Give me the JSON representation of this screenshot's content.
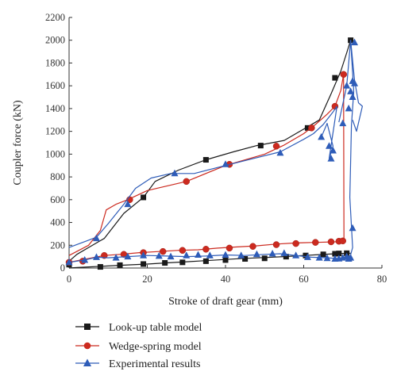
{
  "chart_data": {
    "type": "line",
    "title": "",
    "xlabel": "Stroke of draft gear (mm)",
    "ylabel": "Coupler force (kN)",
    "xlim": [
      0,
      80
    ],
    "ylim": [
      0,
      2200
    ],
    "xticks": [
      0,
      20,
      40,
      60,
      80
    ],
    "yticks": [
      0,
      200,
      400,
      600,
      800,
      1000,
      1200,
      1400,
      1600,
      1800,
      2000,
      2200
    ],
    "grid": false,
    "legend_position": "bottom",
    "series": [
      {
        "name": "Look-up table model",
        "color": "#1a1a1a",
        "marker": "square",
        "curves": [
          {
            "x": [
              0,
              2,
              5,
              9,
              14,
              19,
              22,
              28,
              35,
              42,
              48,
              55,
              60,
              64,
              67,
              69.5,
              71,
              72
            ],
            "y": [
              60,
              120,
              180,
              260,
              480,
              620,
              760,
              860,
              950,
              1020,
              1075,
              1120,
              1220,
              1300,
              1530,
              1730,
              1890,
              2000
            ]
          },
          {
            "x": [
              72,
              70,
              68,
              64,
              60,
              55,
              50,
              45,
              40,
              35,
              30,
              25,
              20,
              15,
              10,
              5,
              2,
              0
            ],
            "y": [
              130,
              128,
              125,
              118,
              110,
              100,
              92,
              85,
              75,
              65,
              55,
              45,
              35,
              27,
              18,
              10,
              5,
              0
            ]
          }
        ],
        "markers": {
          "x": [
            0,
            8,
            13,
            19,
            24.5,
            29,
            35,
            40,
            45,
            50,
            55.5,
            60.5,
            65,
            68,
            69,
            71,
            72,
            68,
            61,
            35,
            49,
            19
          ],
          "y": [
            30,
            10,
            25,
            35,
            45,
            50,
            60,
            70,
            80,
            85,
            100,
            110,
            120,
            125,
            128,
            130,
            2000,
            1670,
            1230,
            950,
            1075,
            620
          ]
        }
      },
      {
        "name": "Wedge-spring model",
        "color": "#cc2a1f",
        "marker": "circle",
        "curves": [
          {
            "x": [
              0,
              5,
              8,
              9.5,
              12,
              15,
              20,
              30,
              40,
              50,
              55,
              60,
              63,
              66,
              68,
              69.5,
              70.2
            ],
            "y": [
              110,
              200,
              330,
              510,
              560,
              600,
              680,
              760,
              900,
              1000,
              1080,
              1180,
              1260,
              1350,
              1420,
              1560,
              1700
            ]
          },
          {
            "x": [
              70.2,
              70.3,
              70,
              67,
              63,
              58,
              53,
              48,
              43,
              38,
              33,
              28,
              23,
              18,
              13,
              9,
              3,
              0
            ],
            "y": [
              1700,
              235,
              232,
              229,
              225,
              220,
              210,
              195,
              185,
              175,
              160,
              155,
              145,
              135,
              120,
              110,
              70,
              50
            ]
          }
        ],
        "markers": {
          "x": [
            0,
            3.5,
            9,
            14,
            19,
            24,
            29,
            35,
            41,
            47,
            53,
            58,
            63,
            67,
            69,
            70,
            15.5,
            30,
            41,
            53,
            62,
            68,
            70.2
          ],
          "y": [
            50,
            60,
            110,
            120,
            135,
            145,
            155,
            165,
            175,
            190,
            205,
            215,
            225,
            230,
            235,
            238,
            600,
            760,
            910,
            1070,
            1230,
            1420,
            1700
          ]
        }
      },
      {
        "name": "Experimental results",
        "color": "#2e5cb8",
        "marker": "triangle",
        "curves": [
          {
            "x": [
              0,
              7,
              10,
              14,
              17,
              21,
              26,
              32,
              40,
              47,
              54,
              60,
              62.5,
              65,
              67.5,
              68.5
            ],
            "y": [
              180,
              270,
              390,
              560,
              700,
              790,
              830,
              830,
              900,
              960,
              1020,
              1130,
              1180,
              1260,
              1370,
              1420
            ]
          },
          {
            "x": [
              64.5,
              66,
              67.5,
              66.5,
              68.5
            ],
            "y": [
              1150,
              1270,
              1070,
              960,
              1420
            ]
          },
          {
            "x": [
              69,
              71,
              72,
              73,
              74,
              75,
              73.5,
              72.5
            ],
            "y": [
              1280,
              1600,
              2000,
              1650,
              1450,
              1420,
              1200,
              1300
            ]
          },
          {
            "x": [
              72,
              72.8,
              72.2,
              71.8,
              72.5,
              71.8
            ],
            "y": [
              2000,
              1550,
              1250,
              620,
              180,
              90
            ]
          },
          {
            "x": [
              72,
              71,
              69,
              66,
              62,
              58,
              54,
              50,
              45,
              40,
              35,
              30,
              25,
              20,
              15,
              10,
              7,
              4,
              0
            ],
            "y": [
              90,
              85,
              82,
              90,
              95,
              110,
              125,
              120,
              110,
              115,
              105,
              100,
              105,
              110,
              100,
              90,
              95,
              70,
              50
            ]
          }
        ],
        "markers": {
          "x": [
            0,
            4,
            7,
            12,
            15,
            19,
            23,
            26,
            30,
            33,
            36,
            40,
            44,
            48,
            52,
            55,
            58,
            61,
            64,
            66,
            68,
            69,
            70,
            71,
            71.5,
            72,
            72.5,
            73,
            73,
            72.5,
            72,
            71.5,
            70,
            67.5,
            66.5,
            64.5,
            67,
            54,
            40,
            27,
            15,
            7,
            71,
            72.5
          ],
          "y": [
            50,
            70,
            95,
            90,
            100,
            110,
            105,
            100,
            110,
            115,
            110,
            115,
            110,
            120,
            125,
            130,
            110,
            95,
            90,
            85,
            80,
            82,
            90,
            100,
            80,
            90,
            350,
            1620,
            1980,
            1640,
            1550,
            1400,
            1270,
            1030,
            1070,
            1150,
            960,
            1010,
            910,
            830,
            560,
            260,
            1600,
            1500
          ]
        }
      }
    ]
  }
}
